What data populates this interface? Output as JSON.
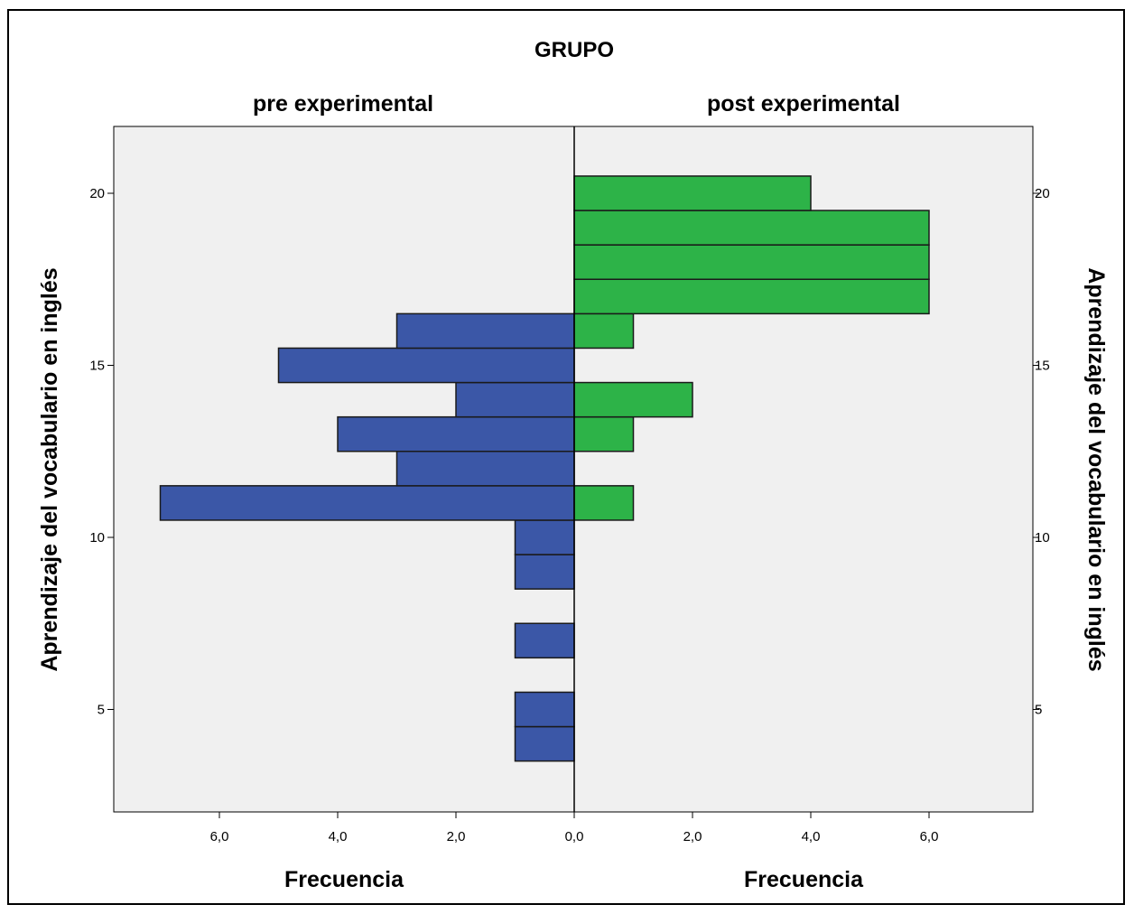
{
  "chart_data": {
    "type": "bar",
    "subtype": "population-pyramid",
    "title": "GRUPO",
    "orientation": "horizontal",
    "ylabel": "Aprendizaje del vocabulario en inglés",
    "y_ticks": [
      5,
      10,
      15,
      20
    ],
    "ylim": [
      2,
      22
    ],
    "bin_width": 1,
    "x_ticks": [
      "6,0",
      "4,0",
      "2,0",
      "0,0",
      "2,0",
      "4,0",
      "6,0"
    ],
    "xlim": [
      0,
      7.8
    ],
    "grid": false,
    "panels": [
      {
        "name": "pre experimental",
        "side": "left",
        "xlabel": "Frecuencia",
        "color": "#3b57a7",
        "bins": [
          {
            "y": 4,
            "freq": 1
          },
          {
            "y": 5,
            "freq": 1
          },
          {
            "y": 7,
            "freq": 1
          },
          {
            "y": 9,
            "freq": 1
          },
          {
            "y": 10,
            "freq": 1
          },
          {
            "y": 11,
            "freq": 7
          },
          {
            "y": 12,
            "freq": 3
          },
          {
            "y": 13,
            "freq": 4
          },
          {
            "y": 14,
            "freq": 2
          },
          {
            "y": 15,
            "freq": 5
          },
          {
            "y": 16,
            "freq": 3
          }
        ]
      },
      {
        "name": "post experimental",
        "side": "right",
        "xlabel": "Frecuencia",
        "color": "#2db348",
        "bins": [
          {
            "y": 11,
            "freq": 1
          },
          {
            "y": 13,
            "freq": 1
          },
          {
            "y": 14,
            "freq": 2
          },
          {
            "y": 16,
            "freq": 1
          },
          {
            "y": 17,
            "freq": 6
          },
          {
            "y": 18,
            "freq": 6
          },
          {
            "y": 19,
            "freq": 6
          },
          {
            "y": 20,
            "freq": 4
          }
        ]
      }
    ]
  },
  "colors": {
    "plot_background": "#f0f0f0",
    "pre": "#3b57a7",
    "post": "#2db348"
  }
}
